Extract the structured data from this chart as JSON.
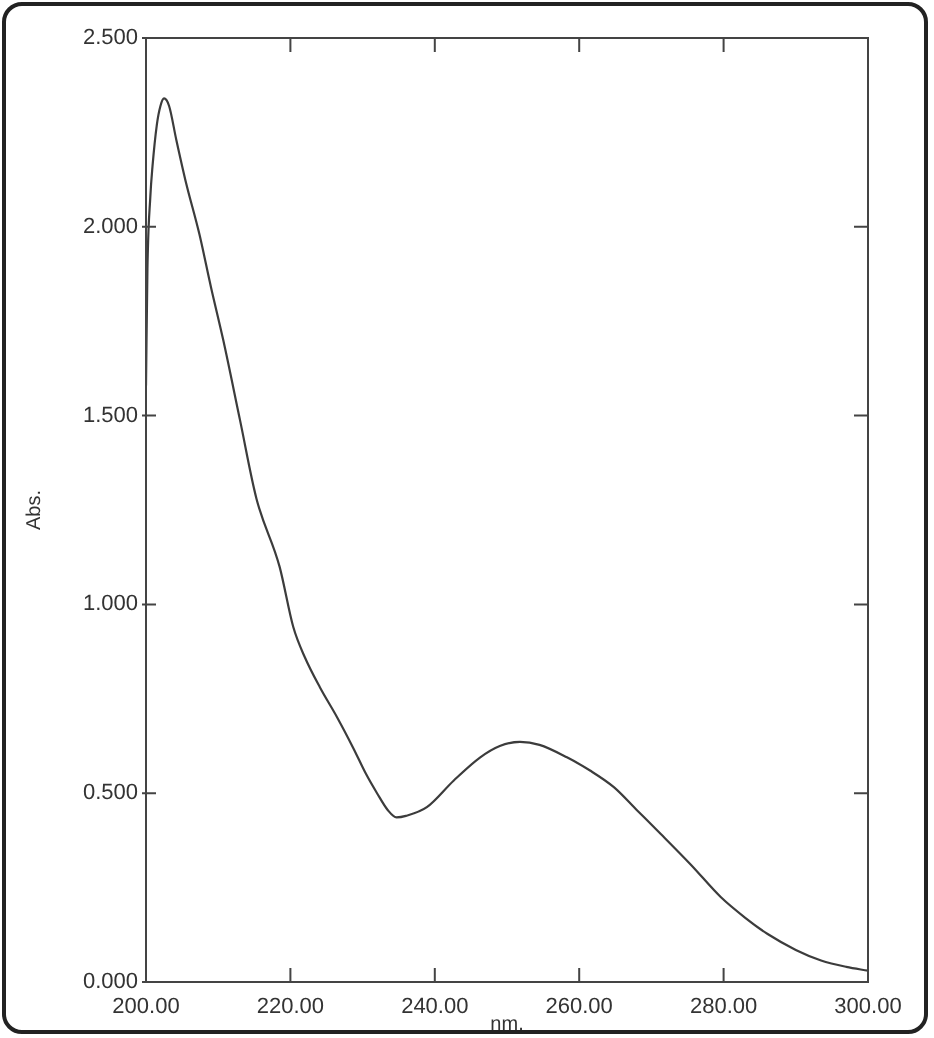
{
  "chart_data": {
    "type": "line",
    "xlabel": "nm.",
    "ylabel": "Abs.",
    "color": "#3c3c3c",
    "x": [
      200.0,
      200.2,
      200.6,
      200.9,
      201.5,
      202.0,
      202.5,
      203.2,
      204.2,
      205.5,
      207.4,
      209.0,
      210.7,
      213.0,
      215.3,
      218.5,
      220.4,
      222.0,
      224.1,
      226.5,
      228.7,
      230.5,
      232.0,
      233.5,
      234.7,
      236.0,
      238.9,
      242.6,
      246.3,
      249.0,
      251.8,
      254.5,
      258.3,
      261.5,
      264.8,
      268.0,
      271.3,
      275.5,
      279.6,
      283.0,
      286.1,
      290.0,
      293.5,
      297.0,
      300.0
    ],
    "values": [
      1.58,
      1.89,
      2.08,
      2.16,
      2.27,
      2.32,
      2.34,
      2.32,
      2.23,
      2.12,
      1.98,
      1.84,
      1.7,
      1.49,
      1.28,
      1.1,
      0.94,
      0.86,
      0.78,
      0.7,
      0.62,
      0.55,
      0.5,
      0.455,
      0.436,
      0.44,
      0.463,
      0.533,
      0.595,
      0.625,
      0.636,
      0.628,
      0.595,
      0.56,
      0.516,
      0.455,
      0.392,
      0.31,
      0.225,
      0.17,
      0.127,
      0.085,
      0.057,
      0.04,
      0.03
    ],
    "xlim": [
      200,
      300
    ],
    "ylim": [
      0,
      2.5
    ],
    "xticks": [
      {
        "value": 200,
        "label": "200.00"
      },
      {
        "value": 220,
        "label": "220.00"
      },
      {
        "value": 240,
        "label": "240.00"
      },
      {
        "value": 260,
        "label": "260.00"
      },
      {
        "value": 280,
        "label": "280.00"
      },
      {
        "value": 300,
        "label": "300.00"
      }
    ],
    "yticks": [
      {
        "value": 0,
        "label": "0.000"
      },
      {
        "value": 0.5,
        "label": "0.500"
      },
      {
        "value": 1,
        "label": "1.000"
      },
      {
        "value": 1.5,
        "label": "1.500"
      },
      {
        "value": 2,
        "label": "2.000"
      },
      {
        "value": 2.5,
        "label": "2.500"
      }
    ]
  }
}
